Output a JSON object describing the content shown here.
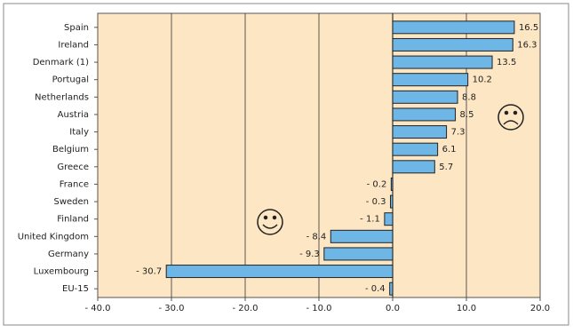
{
  "chart_data": {
    "type": "bar",
    "orientation": "horizontal",
    "categories": [
      "Spain",
      "Ireland",
      "Denmark (1)",
      "Portugal",
      "Netherlands",
      "Austria",
      "Italy",
      "Belgium",
      "Greece",
      "France",
      "Sweden",
      "Finland",
      "United Kingdom",
      "Germany",
      "Luxembourg",
      "EU-15"
    ],
    "values": [
      16.5,
      16.3,
      13.5,
      10.2,
      8.8,
      8.5,
      7.3,
      6.1,
      5.7,
      -0.2,
      -0.3,
      -1.1,
      -8.4,
      -9.3,
      -30.7,
      -0.4
    ],
    "value_labels": [
      "16.5",
      "16.3",
      "13.5",
      "10.2",
      "8.8",
      "8.5",
      "7.3",
      "6.1",
      "5.7",
      "- 0.2",
      "- 0.3",
      "- 1.1",
      "- 8.4",
      "- 9.3",
      "- 30.7",
      "- 0.4"
    ],
    "color": "#6db6e6",
    "xlim": [
      -40,
      20
    ],
    "xticks": [
      {
        "value": -40,
        "label": "- 40.0"
      },
      {
        "value": -30,
        "label": "- 30.0"
      },
      {
        "value": -20,
        "label": "- 20.0"
      },
      {
        "value": -10,
        "label": "- 10.0"
      },
      {
        "value": 0,
        "label": "0.0"
      },
      {
        "value": 10,
        "label": "10.0"
      },
      {
        "value": 20,
        "label": "20.0"
      }
    ],
    "grid": true
  }
}
